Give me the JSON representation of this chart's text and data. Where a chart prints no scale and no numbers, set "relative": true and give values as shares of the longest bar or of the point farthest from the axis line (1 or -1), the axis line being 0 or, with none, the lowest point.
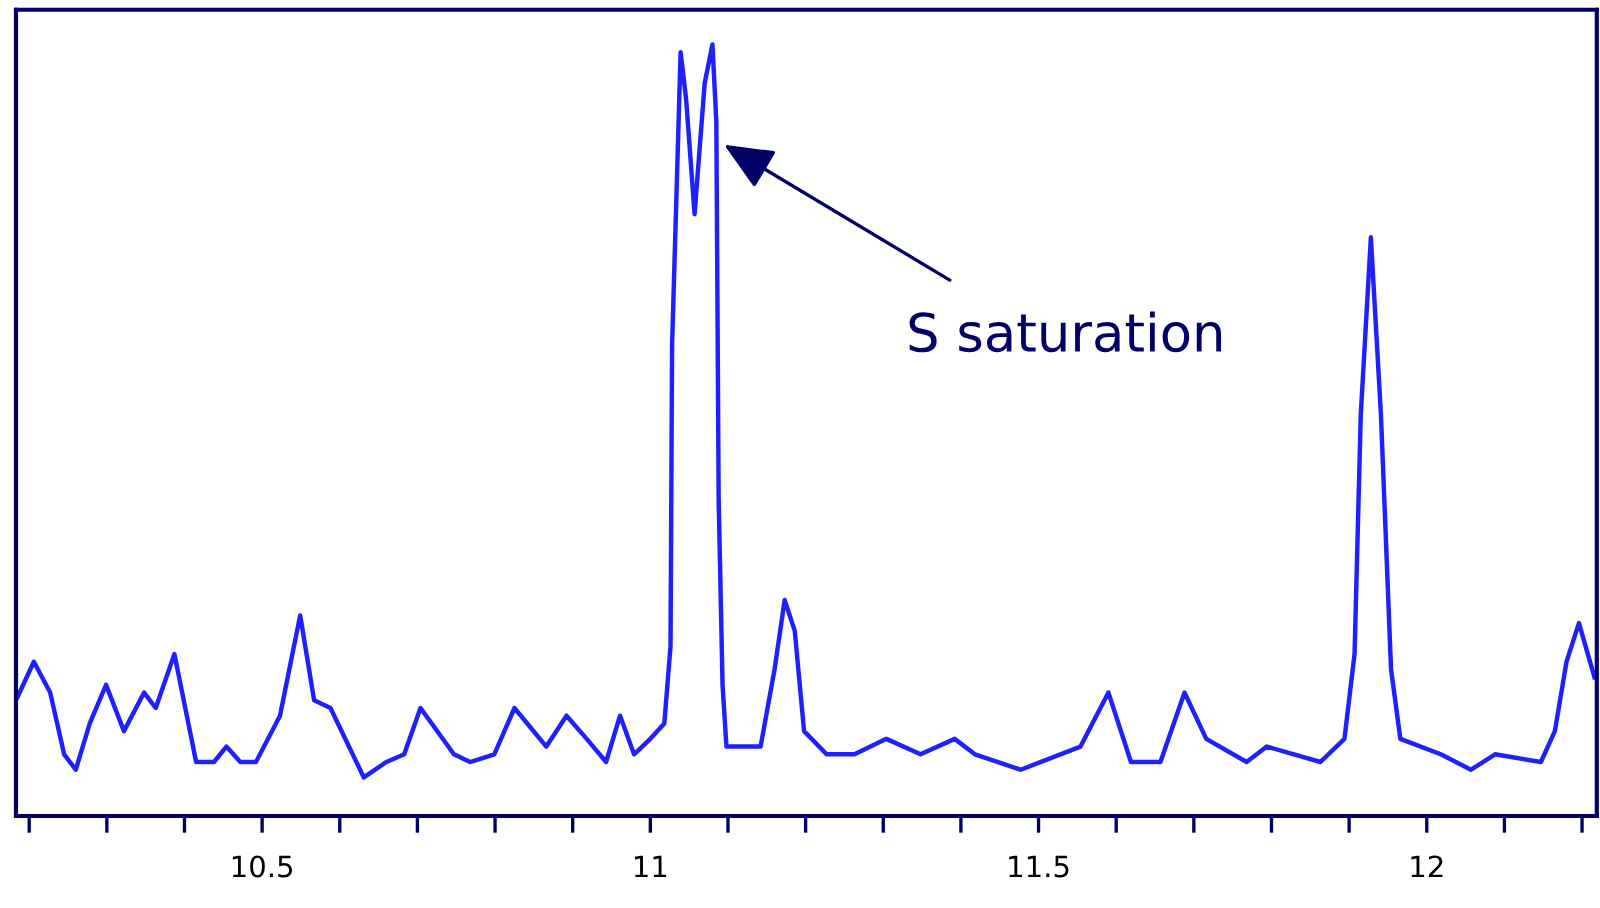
{
  "chart_data": {
    "type": "line",
    "relative": true,
    "xlim": [
      10.183,
      12.219
    ],
    "xticks": [
      {
        "value": 10.2,
        "label": null
      },
      {
        "value": 10.3,
        "label": null
      },
      {
        "value": 10.4,
        "label": null
      },
      10.5,
      {
        "value": 10.6,
        "label": null
      },
      {
        "value": 10.7,
        "label": null
      },
      {
        "value": 10.8,
        "label": null
      },
      {
        "value": 10.9,
        "label": null
      },
      11,
      {
        "value": 11.1,
        "label": null
      },
      {
        "value": 11.2,
        "label": null
      },
      {
        "value": 11.3,
        "label": null
      },
      {
        "value": 11.4,
        "label": null
      },
      11.5,
      {
        "value": 11.6,
        "label": null
      },
      {
        "value": 11.7,
        "label": null
      },
      {
        "value": 11.8,
        "label": null
      },
      {
        "value": 11.9,
        "label": null
      },
      12,
      {
        "value": 12.1,
        "label": null
      },
      {
        "value": 12.2,
        "label": null
      }
    ],
    "tick_labels": "x",
    "grid": false,
    "marker": "none",
    "line_style": "solid",
    "annotations": [
      {
        "text": "S saturation",
        "x": 11.095,
        "y": 0.87
      }
    ],
    "series": [
      {
        "color": "#2020ff",
        "x": [
          10.183,
          10.206,
          10.227,
          10.245,
          10.26,
          10.278,
          10.299,
          10.322,
          10.348,
          10.363,
          10.387,
          10.415,
          10.438,
          10.454,
          10.472,
          10.492,
          10.523,
          10.549,
          10.567,
          10.588,
          10.631,
          10.66,
          10.683,
          10.704,
          10.747,
          10.768,
          10.799,
          10.825,
          10.866,
          10.892,
          10.918,
          10.943,
          10.961,
          10.979,
          11.0,
          11.018,
          11.026,
          11.028,
          11.039,
          11.046,
          11.057,
          11.07,
          11.08,
          11.085,
          11.088,
          11.093,
          11.098,
          11.142,
          11.16,
          11.173,
          11.186,
          11.198,
          11.227,
          11.263,
          11.304,
          11.348,
          11.392,
          11.418,
          11.477,
          11.554,
          11.59,
          11.619,
          11.657,
          11.688,
          11.716,
          11.768,
          11.794,
          11.863,
          11.894,
          11.907,
          11.915,
          11.928,
          11.941,
          11.954,
          11.966,
          12.018,
          12.057,
          12.088,
          12.147,
          12.165,
          12.18,
          12.196,
          12.216
        ],
        "values": [
          0.15,
          0.2,
          0.16,
          0.08,
          0.06,
          0.12,
          0.17,
          0.11,
          0.16,
          0.14,
          0.21,
          0.07,
          0.07,
          0.09,
          0.07,
          0.07,
          0.13,
          0.26,
          0.15,
          0.14,
          0.05,
          0.07,
          0.08,
          0.14,
          0.08,
          0.07,
          0.08,
          0.14,
          0.09,
          0.13,
          0.1,
          0.07,
          0.13,
          0.08,
          0.1,
          0.12,
          0.22,
          0.61,
          0.99,
          0.93,
          0.78,
          0.95,
          1.0,
          0.9,
          0.41,
          0.17,
          0.09,
          0.09,
          0.19,
          0.28,
          0.24,
          0.11,
          0.08,
          0.08,
          0.1,
          0.08,
          0.1,
          0.08,
          0.06,
          0.09,
          0.16,
          0.07,
          0.07,
          0.16,
          0.1,
          0.07,
          0.09,
          0.07,
          0.1,
          0.21,
          0.52,
          0.75,
          0.52,
          0.19,
          0.1,
          0.08,
          0.06,
          0.08,
          0.07,
          0.11,
          0.2,
          0.25,
          0.18
        ]
      }
    ]
  }
}
